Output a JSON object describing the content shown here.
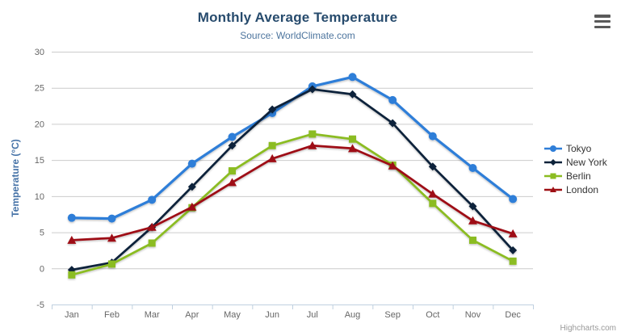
{
  "header": {
    "title": "Monthly Average Temperature",
    "subtitle": "Source: WorldClimate.com"
  },
  "export_menu": {
    "icon": "hamburger-menu-icon"
  },
  "credits": {
    "label": "Highcharts.com"
  },
  "chart_data": {
    "type": "line",
    "title": "Monthly Average Temperature",
    "subtitle": "Source: WorldClimate.com",
    "categories": [
      "Jan",
      "Feb",
      "Mar",
      "Apr",
      "May",
      "Jun",
      "Jul",
      "Aug",
      "Sep",
      "Oct",
      "Nov",
      "Dec"
    ],
    "xlabel": "",
    "ylabel": "Temperature (°C)",
    "ylim": [
      -5,
      30
    ],
    "yticks": [
      -5,
      0,
      5,
      10,
      15,
      20,
      25,
      30
    ],
    "grid": true,
    "legend_position": "right",
    "series": [
      {
        "name": "Tokyo",
        "color": "#2f7ed8",
        "marker": "circle",
        "values": [
          7.0,
          6.9,
          9.5,
          14.5,
          18.2,
          21.5,
          25.2,
          26.5,
          23.3,
          18.3,
          13.9,
          9.6
        ]
      },
      {
        "name": "New York",
        "color": "#0d233a",
        "marker": "diamond",
        "values": [
          -0.2,
          0.8,
          5.7,
          11.3,
          17.0,
          22.0,
          24.8,
          24.1,
          20.1,
          14.1,
          8.6,
          2.5
        ]
      },
      {
        "name": "Berlin",
        "color": "#8bbc21",
        "marker": "square",
        "values": [
          -0.9,
          0.6,
          3.5,
          8.4,
          13.5,
          17.0,
          18.6,
          17.9,
          14.3,
          9.0,
          3.9,
          1.0
        ]
      },
      {
        "name": "London",
        "color": "#9e1014",
        "marker": "triangle",
        "values": [
          3.9,
          4.2,
          5.7,
          8.5,
          11.9,
          15.2,
          17.0,
          16.6,
          14.2,
          10.3,
          6.6,
          4.8
        ]
      }
    ]
  },
  "theme": {
    "title_color": "#274b6d",
    "subtitle_color": "#4d759e",
    "axis_label_color": "#666666",
    "axis_title_color": "#4572a7",
    "grid_color": "#cccccc",
    "axis_line_color": "#c0d0e0",
    "legend_text_color": "#333333",
    "credit_color": "#999999",
    "menu_icon_color": "#5a5a5a"
  }
}
